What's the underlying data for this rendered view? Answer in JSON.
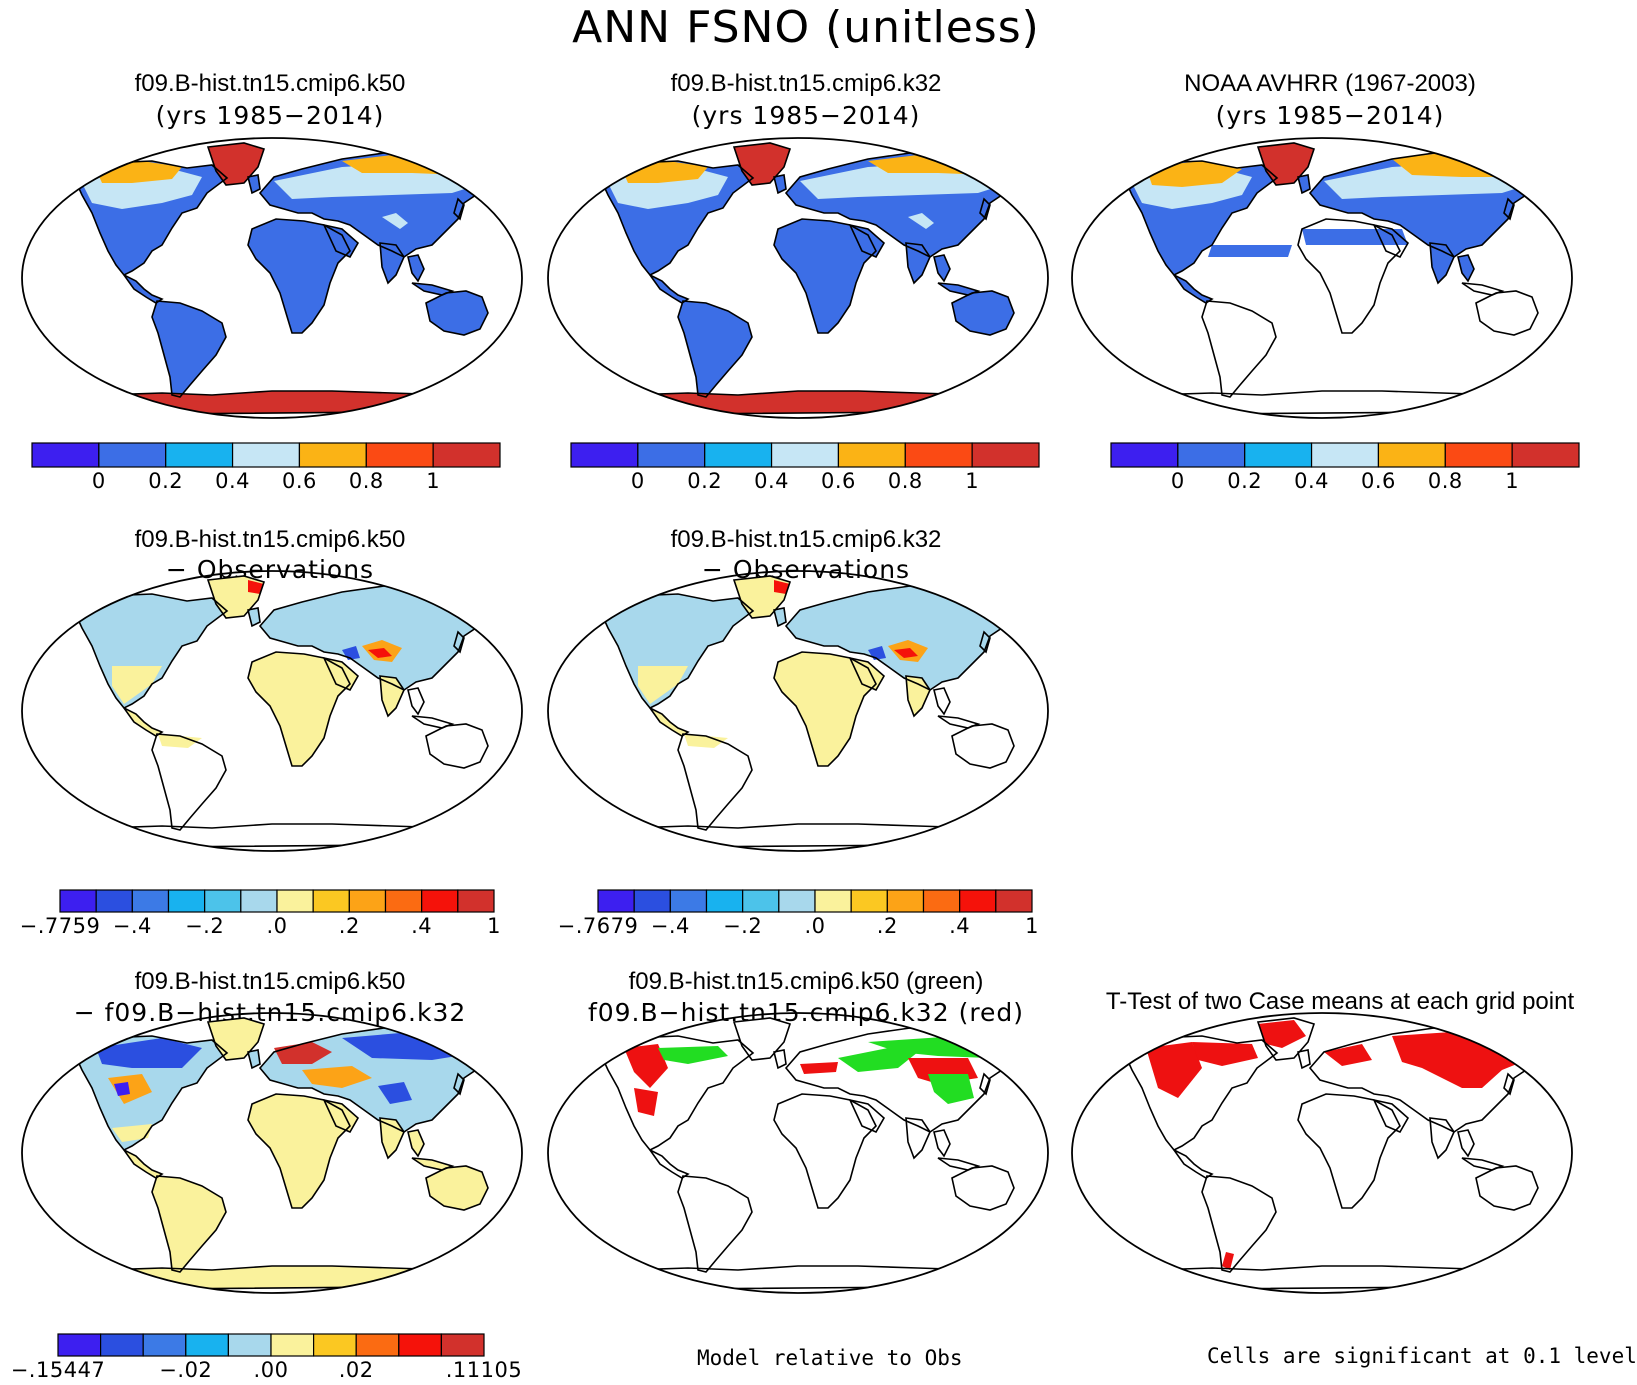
{
  "title": "ANN FSNO (unitless)",
  "colors": {
    "abs": [
      "#3d1ff0",
      "#3c6ee6",
      "#18b2ef",
      "#c6e6f5",
      "#fbb315",
      "#fb4a14",
      "#d2312c"
    ],
    "diff": [
      "#3d1ff0",
      "#2b4fe0",
      "#3c7ae6",
      "#18b2ef",
      "#4cc3ea",
      "#a8d8ec",
      "#faf29c",
      "#fbc822",
      "#fca317",
      "#fb6b12",
      "#f5120a",
      "#d2312c"
    ],
    "land": "#3c6ee6",
    "snow_light": "#c6e6f5",
    "snow_orange": "#fbb315",
    "ice_red": "#d2312c",
    "diff_yellow": "#faf29c",
    "diff_blue": "#a8d8ec",
    "ttest_red": "#ee1111",
    "green": "#22dd22"
  },
  "panels": [
    {
      "id": "k50",
      "title1": "f09.B-hist.tn15.cmip6.k50",
      "title2": "(yrs 1985−2014)",
      "colorbar": {
        "labels": [
          "0",
          "0.2",
          "0.4",
          "0.6",
          "0.8",
          "1"
        ]
      }
    },
    {
      "id": "k32",
      "title1": "f09.B-hist.tn15.cmip6.k32",
      "title2": "(yrs 1985−2014)",
      "colorbar": {
        "labels": [
          "0",
          "0.2",
          "0.4",
          "0.6",
          "0.8",
          "1"
        ]
      }
    },
    {
      "id": "obs",
      "title1": "NOAA AVHRR (1967-2003)",
      "title2": "(yrs 1985−2014)",
      "colorbar": {
        "labels": [
          "0",
          "0.2",
          "0.4",
          "0.6",
          "0.8",
          "1"
        ]
      }
    },
    {
      "id": "k50-obs",
      "title1": "f09.B-hist.tn15.cmip6.k50",
      "title2": "− Observations",
      "colorbar": {
        "labels": [
          "−.7759",
          "−.4",
          "−.2",
          ".0",
          ".2",
          ".4",
          "1"
        ]
      }
    },
    {
      "id": "k32-obs",
      "title1": "f09.B-hist.tn15.cmip6.k32",
      "title2": "− Observations",
      "colorbar": {
        "labels": [
          "−.7679",
          "−.4",
          "−.2",
          ".0",
          ".2",
          ".4",
          "1"
        ]
      }
    },
    {
      "id": "k50-k32",
      "title1": "f09.B-hist.tn15.cmip6.k50",
      "title2": "− f09.B−hist.tn15.cmip6.k32",
      "colorbar": {
        "labels": [
          "−.15447",
          "−.02",
          ".00",
          ".02",
          ".11105"
        ]
      }
    },
    {
      "id": "green-red",
      "title1": "f09.B-hist.tn15.cmip6.k50 (green)",
      "title2": "f09.B−hist.tn15.cmip6.k32 (red)",
      "footnote": "Model relative to Obs"
    },
    {
      "id": "ttest",
      "title1": "T-Test of two Case means at each grid point",
      "footnote": "Cells are significant at 0.1 level"
    }
  ]
}
